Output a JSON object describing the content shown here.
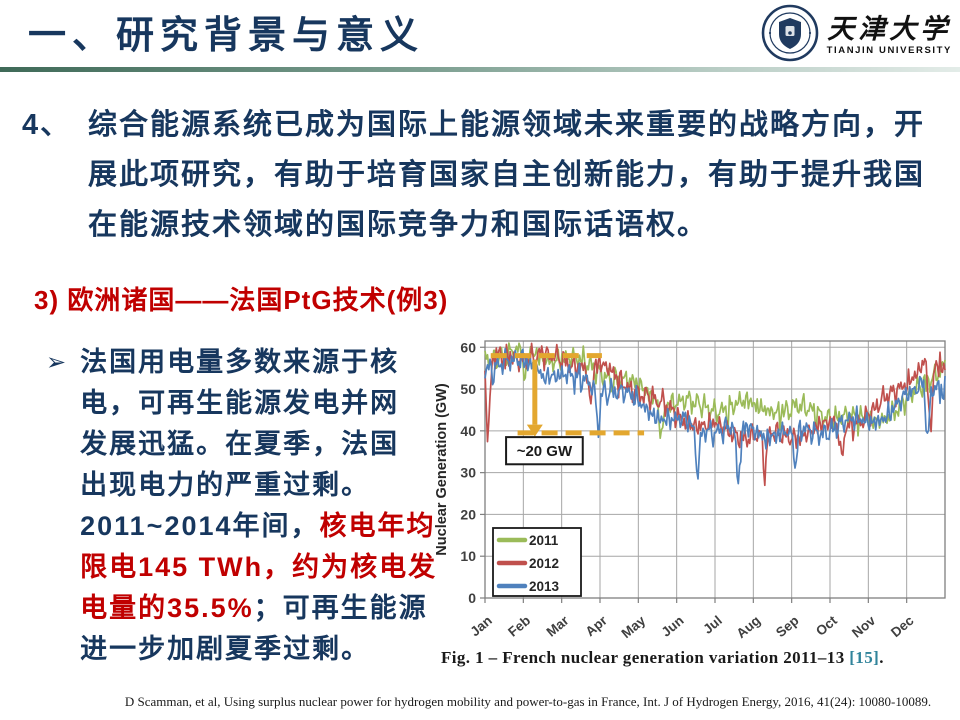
{
  "header": {
    "title": "一、研究背景与意义",
    "logo": {
      "cn": "天津大学",
      "en": "TIANJIN UNIVERSITY"
    }
  },
  "paragraph": {
    "marker": "4、",
    "lines": [
      [
        {
          "t": "综合能源系统已成为国际上能源领域未来重要的战略方向，开",
          "c": "navy"
        }
      ],
      [
        {
          "t": "展此项研究，有助于培育国家自主创新能力，有助于提升我国",
          "c": "navy"
        }
      ],
      [
        {
          "t": "在能源技术领域的国际竞争力和国际话语权。",
          "c": "navy"
        }
      ]
    ]
  },
  "subtitle": "3) 欧洲诸国——法国PtG技术(例3)",
  "bullet": {
    "marker": "➢",
    "lines": [
      [
        {
          "t": "法国用电量多数来源于核",
          "c": "navy"
        }
      ],
      [
        {
          "t": "电，可再生能源发电并网",
          "c": "navy"
        }
      ],
      [
        {
          "t": "发展迅猛。在夏季，法国",
          "c": "navy"
        }
      ],
      [
        {
          "t": "出现电力的严重过剩。",
          "c": "navy"
        }
      ],
      [
        {
          "t": "2011~2014年间，",
          "c": "navy"
        },
        {
          "t": "核电年均",
          "c": "red"
        }
      ],
      [
        {
          "t": "限电145 TWh，约为核电发",
          "c": "red"
        }
      ],
      [
        {
          "t": "电量的35.5%",
          "c": "red"
        },
        {
          "t": "；可再生能源",
          "c": "navy"
        }
      ],
      [
        {
          "t": "进一步加剧夏季过剩。",
          "c": "navy"
        }
      ]
    ]
  },
  "figure": {
    "caption_parts": [
      {
        "t": "Fig. 1  –  French nuclear generation variation 2011–13 ",
        "c": "dark"
      },
      {
        "t": "[15]",
        "c": "teal"
      },
      {
        "t": ".",
        "c": "dark"
      }
    ]
  },
  "footer": "D Scamman, et al, Using surplus nuclear power for hydrogen mobility and power-to-gas in France, Int. J of Hydrogen Energy, 2016, 41(24): 10080-10089.",
  "colors": {
    "navy": "#17375E",
    "red": "#C00000",
    "teal": "#31849B",
    "dark": "#1a1a1a",
    "gold": "#E3A72F"
  },
  "chart_data": {
    "type": "line",
    "title": "",
    "xlabel": "",
    "ylabel": "Nuclear Generation (GW)",
    "x_tick_labels": [
      "Jan",
      "Feb",
      "Mar",
      "Apr",
      "May",
      "Jun",
      "Jul",
      "Aug",
      "Sep",
      "Oct",
      "Nov",
      "Dec"
    ],
    "y_ticks": [
      0,
      10,
      20,
      30,
      40,
      50,
      60
    ],
    "ylim": [
      0,
      61.5
    ],
    "x_months": 12,
    "grid": true,
    "legend_position": "bottom-left",
    "control_step_months": 0.5,
    "series": [
      {
        "name": "2011",
        "color": "#9BBB59",
        "values": [
          58.5,
          59,
          59,
          58.5,
          58,
          56.5,
          55,
          53,
          50.5,
          48.5,
          47,
          46.5,
          46,
          46.5,
          46.5,
          46,
          45.5,
          45,
          44.5,
          43.5,
          43,
          44.5,
          47,
          52,
          57
        ],
        "spikes": [
          {
            "x": 1.05,
            "d": -7
          },
          {
            "x": 4.6,
            "d": -8
          }
        ]
      },
      {
        "name": "2012",
        "color": "#C0504D",
        "values": [
          57.5,
          58.5,
          58.5,
          58,
          57.5,
          56.5,
          55.5,
          53,
          50,
          47,
          44.5,
          42.5,
          41,
          40,
          39.5,
          39,
          39.5,
          40.5,
          41.5,
          42.5,
          44,
          48,
          53,
          57,
          55
        ],
        "spikes": [
          {
            "x": 0.08,
            "d": -19
          },
          {
            "x": 2.75,
            "d": -9
          },
          {
            "x": 7.3,
            "d": -9
          },
          {
            "x": 9.3,
            "d": -8
          },
          {
            "x": 11.62,
            "d": -17
          }
        ]
      },
      {
        "name": "2013",
        "color": "#4F81BD",
        "values": [
          56,
          57,
          56.5,
          55,
          53.5,
          52.5,
          51.5,
          49.5,
          47,
          44.5,
          42.5,
          41.5,
          41,
          41,
          40.5,
          40,
          40,
          40.5,
          41,
          42,
          43,
          44.5,
          48,
          53,
          51
        ],
        "spikes": [
          {
            "x": 2.95,
            "d": -9
          },
          {
            "x": 5.55,
            "d": -11
          },
          {
            "x": 6.6,
            "d": -13
          },
          {
            "x": 8.1,
            "d": -9
          },
          {
            "x": 11.55,
            "d": -13
          }
        ]
      }
    ],
    "annotations": {
      "upper_dash": {
        "y": 58,
        "x1": 0.15,
        "x2": 3.05
      },
      "lower_dash": {
        "y": 39.5,
        "x1": 0.85,
        "x2": 4.15
      },
      "arrow": {
        "x": 1.3,
        "y_from": 57,
        "y_to": 41.5
      },
      "box": {
        "label": "~20 GW",
        "x1": 0.55,
        "x2": 2.55,
        "y_top": 38.5,
        "y_bottom": 32
      },
      "color": "#E3A72F"
    },
    "noise_amplitude": 2.2
  }
}
